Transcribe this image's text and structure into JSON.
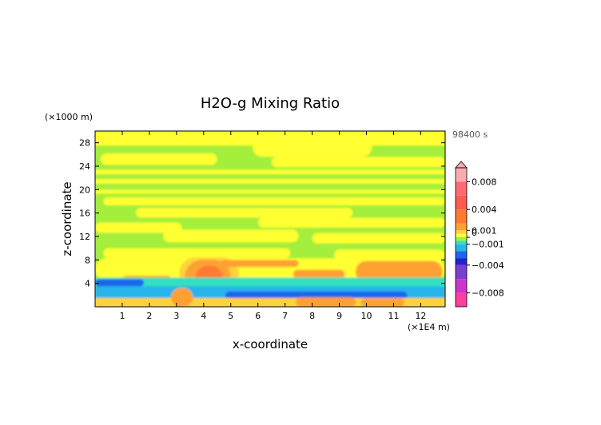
{
  "chart_data": {
    "type": "heatmap",
    "title": "H2O-g Mixing Ratio",
    "xlabel": "x-coordinate",
    "ylabel": "z-coordinate",
    "x_unit": "(×1E4 m)",
    "y_unit": "(×1000 m)",
    "time_label": "98400 s",
    "xlim": [
      0,
      12.9
    ],
    "ylim": [
      0,
      30
    ],
    "x_ticks": [
      "1",
      "2",
      "3",
      "4",
      "5",
      "6",
      "7",
      "8",
      "9",
      "10",
      "11",
      "12"
    ],
    "y_ticks": [
      "4",
      "8",
      "12",
      "16",
      "20",
      "24",
      "28"
    ],
    "colorbar": {
      "range": [
        -0.01,
        0.01
      ],
      "tick_labels": [
        {
          "label": "0.008",
          "value": 0.008
        },
        {
          "label": "0.004",
          "value": 0.004
        },
        {
          "label": "0.001",
          "value": 0.001
        },
        {
          "label": "0",
          "value": 0.0
        },
        {
          "label": "−0.001",
          "value": -0.001
        },
        {
          "label": "−0.004",
          "value": -0.004
        },
        {
          "label": "−0.008",
          "value": -0.008
        }
      ],
      "levels": [
        {
          "from": -0.01,
          "to": -0.008,
          "color": "#ff3fa0"
        },
        {
          "from": -0.008,
          "to": -0.006,
          "color": "#cc33cc"
        },
        {
          "from": -0.006,
          "to": -0.004,
          "color": "#7a3fcf"
        },
        {
          "from": -0.004,
          "to": -0.003,
          "color": "#2222d0"
        },
        {
          "from": -0.003,
          "to": -0.002,
          "color": "#1a66ee"
        },
        {
          "from": -0.002,
          "to": -0.001,
          "color": "#27b5ea"
        },
        {
          "from": -0.001,
          "to": -0.0005,
          "color": "#33e0c0"
        },
        {
          "from": -0.0005,
          "to": 0.0,
          "color": "#a4ee3c"
        },
        {
          "from": 0.0,
          "to": 0.0005,
          "color": "#ffff33"
        },
        {
          "from": 0.0005,
          "to": 0.001,
          "color": "#ffd23a"
        },
        {
          "from": 0.001,
          "to": 0.002,
          "color": "#ffa030"
        },
        {
          "from": 0.002,
          "to": 0.004,
          "color": "#ff7a30"
        },
        {
          "from": 0.004,
          "to": 0.006,
          "color": "#ff5a50"
        },
        {
          "from": 0.006,
          "to": 0.008,
          "color": "#ff6a70"
        },
        {
          "from": 0.008,
          "to": 0.01,
          "color": "#ffaab0"
        }
      ]
    },
    "field_colors": {
      "background": "#a4ee3c",
      "positive_weak": "#ffff33",
      "positive_mid": "#ffd23a",
      "positive_strong": "#ffa030",
      "positive_peak": "#ff7a30",
      "negative_weak": "#33e0c0",
      "negative_mid": "#27b5ea",
      "negative_strong": "#1a66ee"
    },
    "regions": [
      {
        "kind": "band",
        "level": "positive_weak",
        "x": [
          0,
          12.9
        ],
        "z": [
          27.5,
          30
        ]
      },
      {
        "kind": "blob",
        "level": "positive_weak",
        "x": [
          5.8,
          10.2
        ],
        "z": [
          25.6,
          28.8
        ]
      },
      {
        "kind": "blob",
        "level": "positive_weak",
        "x": [
          0.2,
          4.5
        ],
        "z": [
          24.2,
          26.2
        ]
      },
      {
        "kind": "blob",
        "level": "positive_weak",
        "x": [
          6.5,
          12.9
        ],
        "z": [
          23.8,
          25.6
        ]
      },
      {
        "kind": "band",
        "level": "positive_weak",
        "x": [
          0,
          12.9
        ],
        "z": [
          22.6,
          23.4
        ]
      },
      {
        "kind": "band",
        "level": "positive_weak",
        "x": [
          0,
          12.9
        ],
        "z": [
          21.0,
          21.8
        ]
      },
      {
        "kind": "band",
        "level": "positive_weak",
        "x": [
          0,
          12.9
        ],
        "z": [
          19.3,
          20.0
        ]
      },
      {
        "kind": "blob",
        "level": "positive_weak",
        "x": [
          0.3,
          12.9
        ],
        "z": [
          17.3,
          18.7
        ]
      },
      {
        "kind": "blob",
        "level": "positive_weak",
        "x": [
          1.5,
          9.5
        ],
        "z": [
          15.2,
          16.9
        ]
      },
      {
        "kind": "blob",
        "level": "positive_weak",
        "x": [
          6.0,
          12.9
        ],
        "z": [
          13.5,
          15.2
        ]
      },
      {
        "kind": "blob",
        "level": "positive_weak",
        "x": [
          0,
          3.2
        ],
        "z": [
          12.6,
          14.4
        ]
      },
      {
        "kind": "blob",
        "level": "positive_weak",
        "x": [
          2.5,
          7.5
        ],
        "z": [
          11.0,
          13.2
        ]
      },
      {
        "kind": "blob",
        "level": "positive_weak",
        "x": [
          8.0,
          12.9
        ],
        "z": [
          10.8,
          12.6
        ]
      },
      {
        "kind": "blob",
        "level": "positive_weak",
        "x": [
          0.3,
          7.2
        ],
        "z": [
          8.3,
          10.0
        ]
      },
      {
        "kind": "blob",
        "level": "positive_weak",
        "x": [
          8.8,
          12.9
        ],
        "z": [
          7.8,
          9.8
        ]
      },
      {
        "kind": "blob",
        "level": "positive_weak",
        "x": [
          0,
          12.9
        ],
        "z": [
          4.5,
          8.3
        ]
      },
      {
        "kind": "blob",
        "level": "positive_mid",
        "x": [
          3.1,
          5.3
        ],
        "z": [
          3.0,
          8.4
        ]
      },
      {
        "kind": "blob",
        "level": "positive_strong",
        "x": [
          3.3,
          5.0
        ],
        "z": [
          2.0,
          8.0
        ]
      },
      {
        "kind": "blob",
        "level": "positive_peak",
        "x": [
          3.7,
          4.7
        ],
        "z": [
          3.0,
          7.0
        ]
      },
      {
        "kind": "blob",
        "level": "positive_strong",
        "x": [
          4.6,
          7.5
        ],
        "z": [
          6.8,
          8.0
        ]
      },
      {
        "kind": "blob",
        "level": "positive_strong",
        "x": [
          1.0,
          2.8
        ],
        "z": [
          4.0,
          5.3
        ]
      },
      {
        "kind": "blob",
        "level": "positive_strong",
        "x": [
          7.3,
          9.2
        ],
        "z": [
          4.8,
          6.3
        ]
      },
      {
        "kind": "blob",
        "level": "positive_strong",
        "x": [
          9.6,
          12.8
        ],
        "z": [
          4.2,
          7.8
        ]
      },
      {
        "kind": "band",
        "level": "negative_weak",
        "x": [
          0,
          12.9
        ],
        "z": [
          2.0,
          5.0
        ]
      },
      {
        "kind": "band",
        "level": "negative_mid",
        "x": [
          0,
          12.9
        ],
        "z": [
          1.0,
          3.5
        ]
      },
      {
        "kind": "blob",
        "level": "negative_strong",
        "x": [
          0,
          1.8
        ],
        "z": [
          3.5,
          4.7
        ]
      },
      {
        "kind": "blob",
        "level": "negative_strong",
        "x": [
          4.8,
          11.5
        ],
        "z": [
          1.2,
          2.6
        ]
      },
      {
        "kind": "band",
        "level": "positive_mid",
        "x": [
          0,
          12.9
        ],
        "z": [
          0,
          1.5
        ]
      },
      {
        "kind": "blob",
        "level": "positive_strong",
        "x": [
          2.8,
          3.6
        ],
        "z": [
          0,
          3.2
        ]
      },
      {
        "kind": "blob",
        "level": "positive_strong",
        "x": [
          7.4,
          9.6
        ],
        "z": [
          0,
          1.6
        ]
      },
      {
        "kind": "blob",
        "level": "positive_strong",
        "x": [
          9.8,
          11.4
        ],
        "z": [
          0,
          1.4
        ]
      }
    ]
  }
}
